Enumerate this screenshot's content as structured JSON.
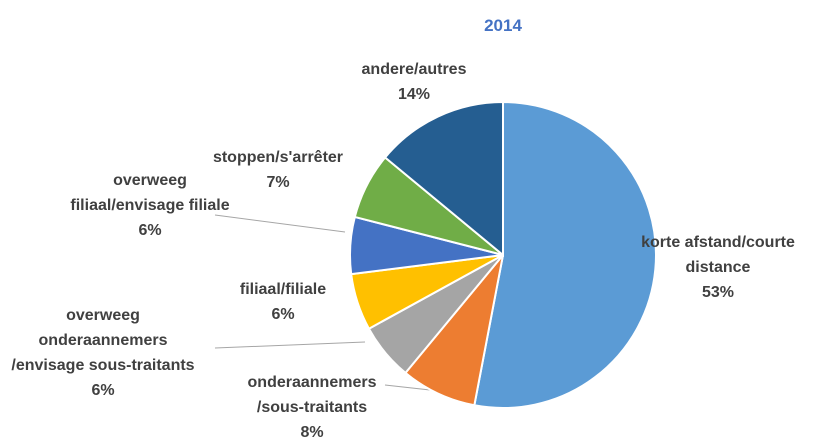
{
  "chart_data": {
    "type": "pie",
    "title": "2014",
    "categories": [
      "korte afstand/courte distance",
      "onderaannemers /sous-traitants",
      "overweeg onderaannemers /envisage sous-traitants",
      "filiaal/filiale",
      "overweeg filiaal/envisage filiale",
      "stoppen/s'arrêter",
      "andere/autres"
    ],
    "values": [
      53,
      8,
      6,
      6,
      6,
      7,
      14
    ],
    "value_labels": [
      "53%",
      "8%",
      "6%",
      "6%",
      "6%",
      "7%",
      "14%"
    ],
    "colors": [
      "#5b9bd5",
      "#ed7d31",
      "#a5a5a5",
      "#ffc000",
      "#4472c4",
      "#70ad47",
      "#255e91"
    ]
  }
}
